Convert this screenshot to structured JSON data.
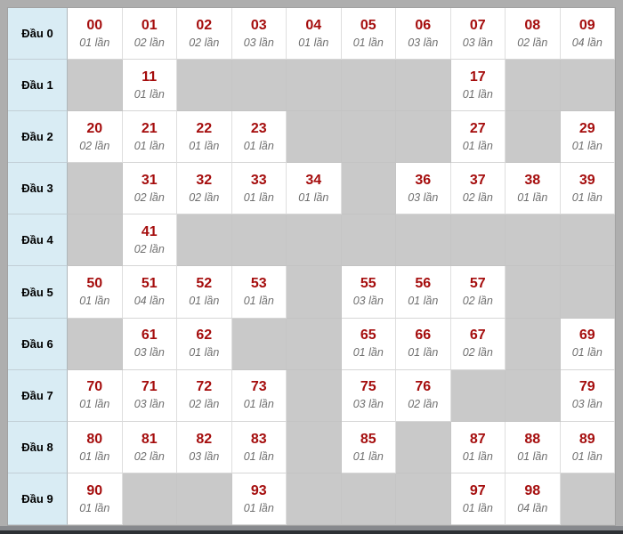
{
  "colors": {
    "page_bg": "#aeaeae",
    "cell_bg": "#ffffff",
    "empty_cell_bg": "#c9c9c9",
    "header_bg": "#d9ecf4",
    "number_color": "#a50d0d",
    "count_color": "#6f6f6f",
    "label_color": "#000000",
    "footer_strip": "#87898d",
    "footer_bar": "#2d3034"
  },
  "chart_data": {
    "type": "table",
    "unit_suffix": "lần",
    "row_labels": [
      "Đầu 0",
      "Đầu 1",
      "Đầu 2",
      "Đầu 3",
      "Đầu 4",
      "Đầu 5",
      "Đầu 6",
      "Đầu 7",
      "Đầu 8",
      "Đầu 9"
    ],
    "rows": [
      {
        "label": "Đầu 0",
        "cells": [
          {
            "num": "00",
            "count": "01 lần"
          },
          {
            "num": "01",
            "count": "02 lần"
          },
          {
            "num": "02",
            "count": "02 lần"
          },
          {
            "num": "03",
            "count": "03 lần"
          },
          {
            "num": "04",
            "count": "01 lần"
          },
          {
            "num": "05",
            "count": "01 lần"
          },
          {
            "num": "06",
            "count": "03 lần"
          },
          {
            "num": "07",
            "count": "03 lần"
          },
          {
            "num": "08",
            "count": "02 lần"
          },
          {
            "num": "09",
            "count": "04 lần"
          }
        ]
      },
      {
        "label": "Đầu 1",
        "cells": [
          null,
          {
            "num": "11",
            "count": "01 lần"
          },
          null,
          null,
          null,
          null,
          null,
          {
            "num": "17",
            "count": "01 lần"
          },
          null,
          null
        ]
      },
      {
        "label": "Đầu 2",
        "cells": [
          {
            "num": "20",
            "count": "02 lần"
          },
          {
            "num": "21",
            "count": "01 lần"
          },
          {
            "num": "22",
            "count": "01 lần"
          },
          {
            "num": "23",
            "count": "01 lần"
          },
          null,
          null,
          null,
          {
            "num": "27",
            "count": "01 lần"
          },
          null,
          {
            "num": "29",
            "count": "01 lần"
          }
        ]
      },
      {
        "label": "Đầu 3",
        "cells": [
          null,
          {
            "num": "31",
            "count": "02 lần"
          },
          {
            "num": "32",
            "count": "02 lần"
          },
          {
            "num": "33",
            "count": "01 lần"
          },
          {
            "num": "34",
            "count": "01 lần"
          },
          null,
          {
            "num": "36",
            "count": "03 lần"
          },
          {
            "num": "37",
            "count": "02 lần"
          },
          {
            "num": "38",
            "count": "01 lần"
          },
          {
            "num": "39",
            "count": "01 lần"
          }
        ]
      },
      {
        "label": "Đầu 4",
        "cells": [
          null,
          {
            "num": "41",
            "count": "02 lần"
          },
          null,
          null,
          null,
          null,
          null,
          null,
          null,
          null
        ]
      },
      {
        "label": "Đầu 5",
        "cells": [
          {
            "num": "50",
            "count": "01 lần"
          },
          {
            "num": "51",
            "count": "04 lần"
          },
          {
            "num": "52",
            "count": "01 lần"
          },
          {
            "num": "53",
            "count": "01 lần"
          },
          null,
          {
            "num": "55",
            "count": "03 lần"
          },
          {
            "num": "56",
            "count": "01 lần"
          },
          {
            "num": "57",
            "count": "02 lần"
          },
          null,
          null
        ]
      },
      {
        "label": "Đầu 6",
        "cells": [
          null,
          {
            "num": "61",
            "count": "03 lần"
          },
          {
            "num": "62",
            "count": "01 lần"
          },
          null,
          null,
          {
            "num": "65",
            "count": "01 lần"
          },
          {
            "num": "66",
            "count": "01 lần"
          },
          {
            "num": "67",
            "count": "02 lần"
          },
          null,
          {
            "num": "69",
            "count": "01 lần"
          }
        ]
      },
      {
        "label": "Đầu 7",
        "cells": [
          {
            "num": "70",
            "count": "01 lần"
          },
          {
            "num": "71",
            "count": "03 lần"
          },
          {
            "num": "72",
            "count": "02 lần"
          },
          {
            "num": "73",
            "count": "01 lần"
          },
          null,
          {
            "num": "75",
            "count": "03 lần"
          },
          {
            "num": "76",
            "count": "02 lần"
          },
          null,
          null,
          {
            "num": "79",
            "count": "03 lần"
          }
        ]
      },
      {
        "label": "Đầu 8",
        "cells": [
          {
            "num": "80",
            "count": "01 lần"
          },
          {
            "num": "81",
            "count": "02 lần"
          },
          {
            "num": "82",
            "count": "03 lần"
          },
          {
            "num": "83",
            "count": "01 lần"
          },
          null,
          {
            "num": "85",
            "count": "01 lần"
          },
          null,
          {
            "num": "87",
            "count": "01 lần"
          },
          {
            "num": "88",
            "count": "01 lần"
          },
          {
            "num": "89",
            "count": "01 lần"
          }
        ]
      },
      {
        "label": "Đầu 9",
        "cells": [
          {
            "num": "90",
            "count": "01 lần"
          },
          null,
          null,
          {
            "num": "93",
            "count": "01 lần"
          },
          null,
          null,
          null,
          {
            "num": "97",
            "count": "01 lần"
          },
          {
            "num": "98",
            "count": "04 lần"
          },
          null
        ]
      }
    ]
  }
}
